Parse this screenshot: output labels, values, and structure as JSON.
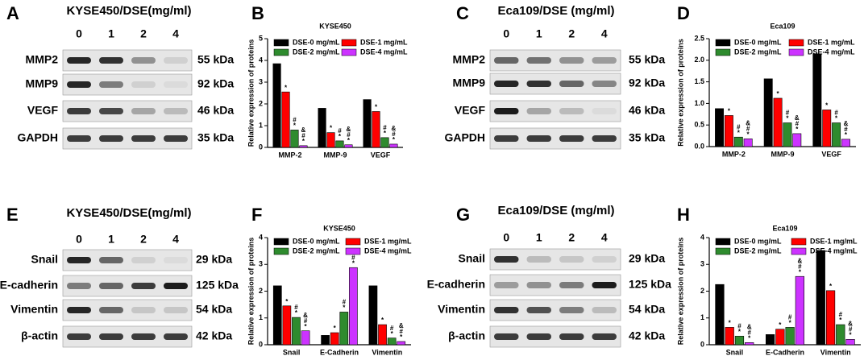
{
  "blots": [
    {
      "panel": "A",
      "title": "KYSE450/DSE(mg/ml)",
      "lanes": [
        "0",
        "1",
        "2",
        "4"
      ],
      "rows": [
        {
          "protein": "MMP2",
          "kda": "55 kDa"
        },
        {
          "protein": "MMP9",
          "kda": "92 kDa"
        },
        {
          "protein": "VEGF",
          "kda": "46 kDa"
        },
        {
          "protein": "GAPDH",
          "kda": "35 kDa"
        }
      ]
    },
    {
      "panel": "C",
      "title": "Eca109/DSE (mg/ml)",
      "lanes": [
        "0",
        "1",
        "2",
        "4"
      ],
      "rows": [
        {
          "protein": "MMP2",
          "kda": "55 kDa"
        },
        {
          "protein": "MMP9",
          "kda": "92 kDa"
        },
        {
          "protein": "VEGF",
          "kda": "46 kDa"
        },
        {
          "protein": "GAPDH",
          "kda": "35 kDa"
        }
      ]
    },
    {
      "panel": "E",
      "title": "KYSE450/DSE(mg/ml)",
      "lanes": [
        "0",
        "1",
        "2",
        "4"
      ],
      "rows": [
        {
          "protein": "Snail",
          "kda": "29 kDa"
        },
        {
          "protein": "E-cadherin",
          "kda": "125 kDa"
        },
        {
          "protein": "Vimentin",
          "kda": "54 kDa"
        },
        {
          "protein": "β-actin",
          "kda": "42 kDa"
        }
      ]
    },
    {
      "panel": "G",
      "title": "Eca109/DSE (mg/ml)",
      "lanes": [
        "0",
        "1",
        "2",
        "4"
      ],
      "rows": [
        {
          "protein": "Snail",
          "kda": "29 kDa"
        },
        {
          "protein": "E-cadherin",
          "kda": "125 kDa"
        },
        {
          "protein": "Vimentin",
          "kda": "54 kDa"
        },
        {
          "protein": "β-actin",
          "kda": "42 kDa"
        }
      ]
    }
  ],
  "chart_data": [
    {
      "type": "bar",
      "panel": "B",
      "title": "KYSE450",
      "ylabel": "Relative expression of proteins",
      "categories": [
        "MMP-2",
        "MMP-9",
        "VEGF"
      ],
      "ylim": [
        0,
        5
      ],
      "yticks": [
        0,
        1,
        2,
        3,
        4,
        5
      ],
      "series": [
        {
          "name": "DSE-0 mg/mL",
          "color": "#000000",
          "values": [
            3.85,
            1.8,
            2.2
          ]
        },
        {
          "name": "DSE-1 mg/mL",
          "color": "#ff0000",
          "values": [
            2.55,
            0.68,
            1.65
          ],
          "significance": [
            [
              "*"
            ],
            [
              "*"
            ],
            [
              "*"
            ]
          ]
        },
        {
          "name": "DSE-2 mg/mL",
          "color": "#2e8b2e",
          "values": [
            0.8,
            0.3,
            0.45
          ],
          "significance": [
            [
              "*",
              "#"
            ],
            [
              "*",
              "#"
            ],
            [
              "*",
              "#"
            ]
          ]
        },
        {
          "name": "DSE-4 mg/mL",
          "color": "#cc33ff",
          "values": [
            0.08,
            0.12,
            0.15
          ],
          "significance": [
            [
              "*",
              "#",
              "&"
            ],
            [
              "*",
              "#",
              "&"
            ],
            [
              "*",
              "#",
              "&"
            ]
          ]
        }
      ]
    },
    {
      "type": "bar",
      "panel": "D",
      "title": "Eca109",
      "ylabel": "Relative expression of proteins",
      "categories": [
        "MMP-2",
        "MMP-9",
        "VEGF"
      ],
      "ylim": [
        0,
        2.5
      ],
      "yticks": [
        {
          "value": 0,
          "label": "0.0"
        },
        0.5,
        {
          "value": 1,
          "label": "1.0"
        },
        1.5,
        {
          "value": 2,
          "label": "2.0"
        },
        2.5
      ],
      "series": [
        {
          "name": "DSE-0 mg/mL",
          "color": "#000000",
          "values": [
            0.88,
            1.57,
            2.15
          ]
        },
        {
          "name": "DSE-1 mg/mL",
          "color": "#ff0000",
          "values": [
            0.72,
            1.12,
            0.85
          ],
          "significance": [
            [
              "*"
            ],
            [
              "*"
            ],
            [
              "*"
            ]
          ]
        },
        {
          "name": "DSE-2 mg/mL",
          "color": "#2e8b2e",
          "values": [
            0.22,
            0.55,
            0.55
          ],
          "significance": [
            [
              "*",
              "#"
            ],
            [
              "*",
              "#"
            ],
            [
              "*",
              "#"
            ]
          ]
        },
        {
          "name": "DSE-4 mg/mL",
          "color": "#cc33ff",
          "values": [
            0.18,
            0.3,
            0.17
          ],
          "significance": [
            [
              "*",
              "#",
              "&"
            ],
            [
              "*",
              "#",
              "&"
            ],
            [
              "*",
              "#",
              "&"
            ]
          ]
        }
      ]
    },
    {
      "type": "bar",
      "panel": "F",
      "title": "KYSE450",
      "ylabel": "Relative expression of proteins",
      "categories": [
        "Snail",
        "E-Cadherin",
        "Vimentin"
      ],
      "ylim": [
        0,
        4
      ],
      "yticks": [
        0,
        1,
        2,
        3,
        4
      ],
      "series": [
        {
          "name": "DSE-0 mg/mL",
          "color": "#000000",
          "values": [
            2.2,
            0.35,
            2.2
          ]
        },
        {
          "name": "DSE-1 mg/mL",
          "color": "#ff0000",
          "values": [
            1.45,
            0.45,
            0.75
          ],
          "significance": [
            [
              "*"
            ],
            [
              "*"
            ],
            [
              "*"
            ]
          ]
        },
        {
          "name": "DSE-2 mg/mL",
          "color": "#2e8b2e",
          "values": [
            1.02,
            1.22,
            0.25
          ],
          "significance": [
            [
              "*",
              "#"
            ],
            [
              "*",
              "#"
            ],
            [
              "*",
              "#"
            ]
          ]
        },
        {
          "name": "DSE-4 mg/mL",
          "color": "#cc33ff",
          "values": [
            0.52,
            2.88,
            0.12
          ],
          "significance": [
            [
              "*",
              "#",
              "&"
            ],
            [
              "*",
              "#",
              "&"
            ],
            [
              "*",
              "#",
              "&"
            ]
          ]
        }
      ]
    },
    {
      "type": "bar",
      "panel": "H",
      "title": "Eca109",
      "ylabel": "Relative expression of proteins",
      "categories": [
        "Snail",
        "E-Cadherin",
        "Vimentin"
      ],
      "ylim": [
        0,
        4
      ],
      "yticks": [
        0,
        1,
        2,
        3,
        4
      ],
      "series": [
        {
          "name": "DSE-0 mg/mL",
          "color": "#000000",
          "values": [
            2.25,
            0.38,
            3.52
          ]
        },
        {
          "name": "DSE-1 mg/mL",
          "color": "#ff0000",
          "values": [
            0.65,
            0.58,
            2.02
          ],
          "significance": [
            [
              "*"
            ],
            [
              "*"
            ],
            [
              "*"
            ]
          ]
        },
        {
          "name": "DSE-2 mg/mL",
          "color": "#2e8b2e",
          "values": [
            0.32,
            0.65,
            0.75
          ],
          "significance": [
            [
              "*",
              "#"
            ],
            [
              "*",
              "#"
            ],
            [
              "*",
              "#"
            ]
          ]
        },
        {
          "name": "DSE-4 mg/mL",
          "color": "#cc33ff",
          "values": [
            0.08,
            2.55,
            0.2
          ],
          "significance": [
            [
              "*",
              "#",
              "&"
            ],
            [
              "*",
              "#",
              "&"
            ],
            [
              "*",
              "#",
              "&"
            ]
          ]
        }
      ]
    }
  ]
}
